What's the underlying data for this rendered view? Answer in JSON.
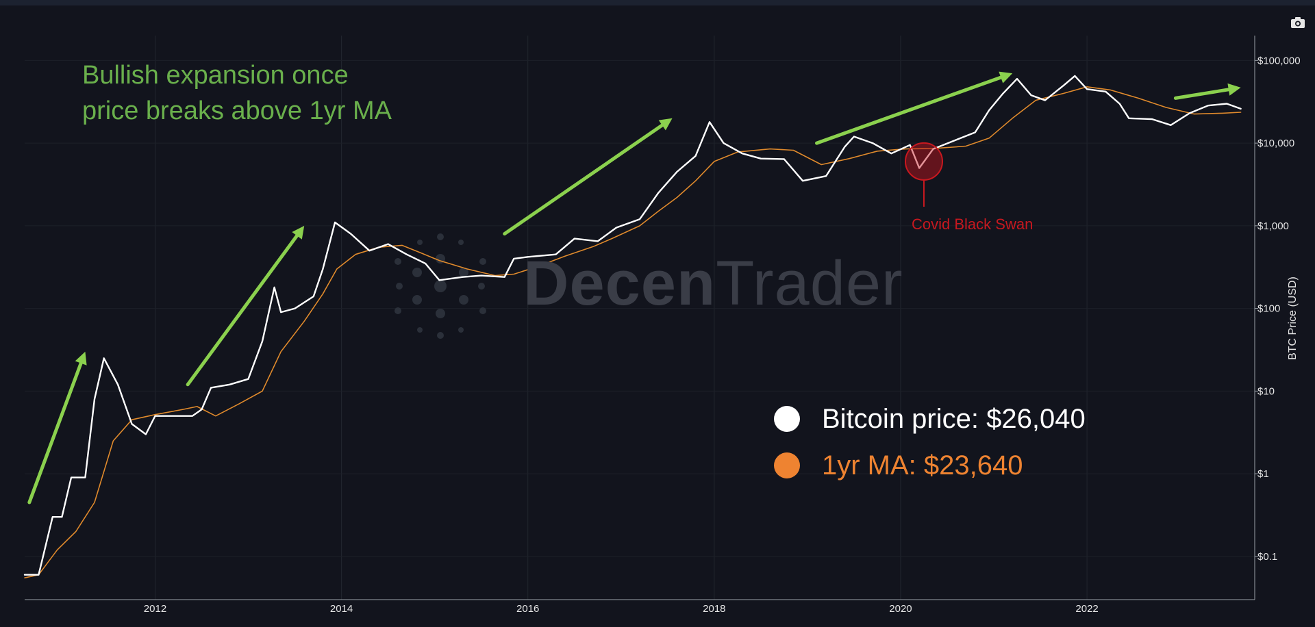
{
  "chart_data": {
    "type": "line",
    "y_scale": "log",
    "ylim": [
      0.03,
      200000
    ],
    "xlim": [
      2010.6,
      2023.8
    ],
    "ylabel": "BTC Price (USD)",
    "xlabel": "",
    "x_ticks": [
      {
        "value": 2012,
        "label": "2012"
      },
      {
        "value": 2014,
        "label": "2014"
      },
      {
        "value": 2016,
        "label": "2016"
      },
      {
        "value": 2018,
        "label": "2018"
      },
      {
        "value": 2020,
        "label": "2020"
      },
      {
        "value": 2022,
        "label": "2022"
      }
    ],
    "y_ticks": [
      {
        "value": 0.1,
        "label": "$0.1"
      },
      {
        "value": 1,
        "label": "$1"
      },
      {
        "value": 10,
        "label": "$10"
      },
      {
        "value": 100,
        "label": "$100"
      },
      {
        "value": 1000,
        "label": "$1,000"
      },
      {
        "value": 10000,
        "label": "$10,000"
      },
      {
        "value": 100000,
        "label": "$100,000"
      }
    ],
    "grid": true,
    "series": [
      {
        "name": "Bitcoin price",
        "color": "#ffffff",
        "points": [
          [
            2010.6,
            0.06
          ],
          [
            2010.75,
            0.06
          ],
          [
            2010.9,
            0.3
          ],
          [
            2011.0,
            0.3
          ],
          [
            2011.1,
            0.9
          ],
          [
            2011.25,
            0.9
          ],
          [
            2011.35,
            8
          ],
          [
            2011.45,
            25
          ],
          [
            2011.6,
            12
          ],
          [
            2011.75,
            4
          ],
          [
            2011.9,
            3
          ],
          [
            2012.0,
            5
          ],
          [
            2012.2,
            5
          ],
          [
            2012.4,
            5
          ],
          [
            2012.5,
            6
          ],
          [
            2012.6,
            11
          ],
          [
            2012.8,
            12
          ],
          [
            2013.0,
            14
          ],
          [
            2013.15,
            40
          ],
          [
            2013.28,
            180
          ],
          [
            2013.35,
            90
          ],
          [
            2013.5,
            100
          ],
          [
            2013.7,
            140
          ],
          [
            2013.8,
            300
          ],
          [
            2013.93,
            1100
          ],
          [
            2014.1,
            800
          ],
          [
            2014.3,
            500
          ],
          [
            2014.5,
            600
          ],
          [
            2014.7,
            450
          ],
          [
            2014.9,
            350
          ],
          [
            2015.05,
            220
          ],
          [
            2015.3,
            240
          ],
          [
            2015.5,
            250
          ],
          [
            2015.75,
            240
          ],
          [
            2015.85,
            400
          ],
          [
            2016.0,
            420
          ],
          [
            2016.3,
            450
          ],
          [
            2016.5,
            700
          ],
          [
            2016.75,
            650
          ],
          [
            2016.95,
            950
          ],
          [
            2017.2,
            1200
          ],
          [
            2017.4,
            2500
          ],
          [
            2017.6,
            4500
          ],
          [
            2017.8,
            7000
          ],
          [
            2017.95,
            18000
          ],
          [
            2018.1,
            10000
          ],
          [
            2018.3,
            7500
          ],
          [
            2018.5,
            6500
          ],
          [
            2018.75,
            6400
          ],
          [
            2018.95,
            3500
          ],
          [
            2019.2,
            4000
          ],
          [
            2019.4,
            9000
          ],
          [
            2019.5,
            12000
          ],
          [
            2019.7,
            10000
          ],
          [
            2019.9,
            7500
          ],
          [
            2020.1,
            9500
          ],
          [
            2020.2,
            5000
          ],
          [
            2020.35,
            8500
          ],
          [
            2020.6,
            11000
          ],
          [
            2020.8,
            13500
          ],
          [
            2020.95,
            25000
          ],
          [
            2021.1,
            40000
          ],
          [
            2021.25,
            60000
          ],
          [
            2021.4,
            38000
          ],
          [
            2021.55,
            33000
          ],
          [
            2021.75,
            50000
          ],
          [
            2021.87,
            65000
          ],
          [
            2022.0,
            45000
          ],
          [
            2022.2,
            42000
          ],
          [
            2022.35,
            30000
          ],
          [
            2022.45,
            20000
          ],
          [
            2022.7,
            19500
          ],
          [
            2022.9,
            16500
          ],
          [
            2023.1,
            23000
          ],
          [
            2023.3,
            28500
          ],
          [
            2023.5,
            30000
          ],
          [
            2023.65,
            26040
          ]
        ]
      },
      {
        "name": "1yr MA",
        "color": "#e08a2c",
        "points": [
          [
            2010.6,
            0.055
          ],
          [
            2010.75,
            0.06
          ],
          [
            2010.95,
            0.12
          ],
          [
            2011.15,
            0.2
          ],
          [
            2011.35,
            0.45
          ],
          [
            2011.55,
            2.5
          ],
          [
            2011.75,
            4.5
          ],
          [
            2012.0,
            5.2
          ],
          [
            2012.3,
            6
          ],
          [
            2012.45,
            6.5
          ],
          [
            2012.65,
            5
          ],
          [
            2012.9,
            7
          ],
          [
            2013.15,
            10
          ],
          [
            2013.35,
            30
          ],
          [
            2013.6,
            70
          ],
          [
            2013.8,
            150
          ],
          [
            2013.95,
            300
          ],
          [
            2014.15,
            450
          ],
          [
            2014.4,
            550
          ],
          [
            2014.65,
            580
          ],
          [
            2014.85,
            470
          ],
          [
            2015.05,
            380
          ],
          [
            2015.35,
            300
          ],
          [
            2015.65,
            250
          ],
          [
            2015.85,
            260
          ],
          [
            2016.1,
            320
          ],
          [
            2016.4,
            430
          ],
          [
            2016.7,
            560
          ],
          [
            2016.9,
            700
          ],
          [
            2017.2,
            1000
          ],
          [
            2017.4,
            1500
          ],
          [
            2017.6,
            2200
          ],
          [
            2017.8,
            3500
          ],
          [
            2018.0,
            6000
          ],
          [
            2018.25,
            7800
          ],
          [
            2018.6,
            8500
          ],
          [
            2018.85,
            8200
          ],
          [
            2019.15,
            5500
          ],
          [
            2019.45,
            6500
          ],
          [
            2019.75,
            8000
          ],
          [
            2020.05,
            8500
          ],
          [
            2020.35,
            8600
          ],
          [
            2020.7,
            9200
          ],
          [
            2020.95,
            11500
          ],
          [
            2021.2,
            20000
          ],
          [
            2021.45,
            33000
          ],
          [
            2021.75,
            40000
          ],
          [
            2022.0,
            48000
          ],
          [
            2022.25,
            44000
          ],
          [
            2022.55,
            35000
          ],
          [
            2022.85,
            27000
          ],
          [
            2023.15,
            22500
          ],
          [
            2023.45,
            23000
          ],
          [
            2023.65,
            23640
          ]
        ]
      }
    ],
    "arrows": [
      {
        "from": [
          2010.65,
          0.45
        ],
        "to": [
          2011.25,
          30
        ]
      },
      {
        "from": [
          2012.35,
          12
        ],
        "to": [
          2013.6,
          1000
        ]
      },
      {
        "from": [
          2015.75,
          800
        ],
        "to": [
          2017.55,
          20000
        ]
      },
      {
        "from": [
          2019.1,
          10000
        ],
        "to": [
          2021.2,
          70000
        ]
      },
      {
        "from": [
          2022.95,
          35000
        ],
        "to": [
          2023.65,
          47000
        ]
      }
    ],
    "highlight": {
      "x": 2020.25,
      "y": 6000
    },
    "annotations": {
      "main": [
        "Bullish expansion once",
        "price breaks above 1yr MA"
      ],
      "covid": "Covid Black Swan"
    }
  },
  "legend": {
    "items": [
      {
        "text": "Bitcoin price: $26,040",
        "color": "#ffffff"
      },
      {
        "text": "1yr MA: $23,640",
        "color": "#ee8331"
      }
    ]
  },
  "watermark": {
    "bold": "Decen",
    "light": "Trader"
  },
  "icons": {
    "camera": "camera-icon"
  }
}
